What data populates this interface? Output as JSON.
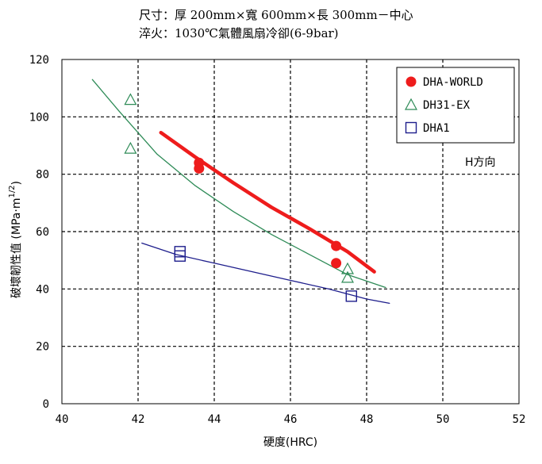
{
  "captions": {
    "line1": "尺寸：厚 200mm×寬 600mm×長 300mm－中心",
    "line2": "淬火：1030℃氣體風扇冷卻(6-9bar)"
  },
  "chart_data": {
    "type": "scatter",
    "xlabel": "硬度(HRC)",
    "ylabel": "破壞韌性值 (MPa·m^(1/2))",
    "ylabel_parts": {
      "main": "破壞韌性值 (MPa·m",
      "sup": "1/2",
      "end": ")"
    },
    "xlim": [
      40,
      52
    ],
    "ylim": [
      0,
      120
    ],
    "xticks": [
      40,
      42,
      44,
      46,
      48,
      50,
      52
    ],
    "yticks": [
      0,
      20,
      40,
      60,
      80,
      100,
      120
    ],
    "grid": true,
    "legend_position": "top-right",
    "annotation": "H方向",
    "series": [
      {
        "name": "DHA-WORLD",
        "color": "#ee1c1c",
        "marker": "filled-circle",
        "points": [
          [
            43.6,
            84
          ],
          [
            43.6,
            82
          ],
          [
            47.2,
            55
          ],
          [
            47.2,
            49
          ]
        ],
        "trend": [
          [
            42.6,
            94.5
          ],
          [
            43.5,
            86
          ],
          [
            44.5,
            77
          ],
          [
            45.5,
            68.5
          ],
          [
            46.5,
            61
          ],
          [
            47.5,
            53
          ],
          [
            48.2,
            46
          ]
        ]
      },
      {
        "name": "DH31-EX",
        "color": "#2e8b57",
        "marker": "open-triangle",
        "points": [
          [
            41.8,
            106
          ],
          [
            41.8,
            89
          ],
          [
            47.5,
            47
          ],
          [
            47.5,
            44
          ]
        ],
        "trend": [
          [
            40.8,
            113
          ],
          [
            41.5,
            102
          ],
          [
            42.5,
            87
          ],
          [
            43.5,
            76
          ],
          [
            44.5,
            67
          ],
          [
            45.5,
            59
          ],
          [
            46.5,
            52
          ],
          [
            47.5,
            45
          ],
          [
            48.5,
            40.5
          ]
        ]
      },
      {
        "name": "DHA1",
        "color": "#1e1e8c",
        "marker": "open-square",
        "points": [
          [
            43.1,
            53
          ],
          [
            43.1,
            51.5
          ],
          [
            47.6,
            37.5
          ]
        ],
        "trend": [
          [
            42.1,
            56
          ],
          [
            43,
            52
          ],
          [
            44,
            49
          ],
          [
            45,
            46
          ],
          [
            46,
            43
          ],
          [
            47,
            40
          ],
          [
            48,
            36.5
          ],
          [
            48.6,
            35
          ]
        ]
      }
    ]
  }
}
